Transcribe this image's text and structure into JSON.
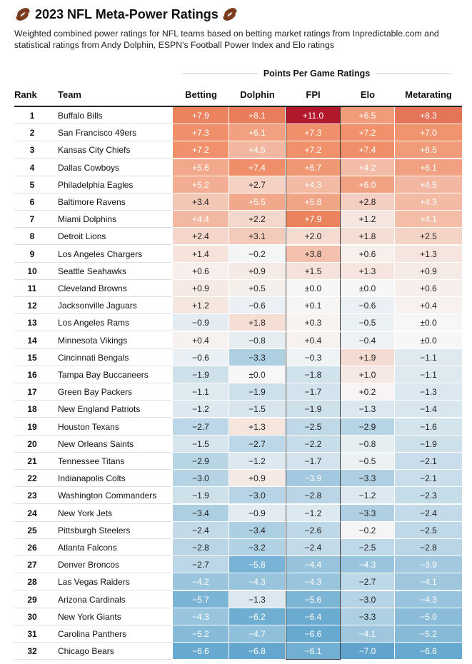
{
  "title": "2023 NFL Meta-Power Ratings",
  "subtitle": "Weighted combined power ratings for NFL teams based on betting market ratings from Inpredictable.com and statistical ratings from Andy Dolphin, ESPN's Football Power Index and Elo ratings",
  "icons": {
    "left": "football-icon",
    "right": "football-icon"
  },
  "group_header": "Points Per Game Ratings",
  "columns": {
    "rank": "Rank",
    "team": "Team",
    "betting": "Betting",
    "dolphin": "Dolphin",
    "fpi": "FPI",
    "elo": "Elo",
    "metarating": "Metarating"
  },
  "colors": {
    "strong_positive": "#b2182b",
    "positive": "#ef8a62",
    "neutral": "#f7f7f7",
    "negative": "#67a9cf",
    "strong_negative": "#2166ac"
  },
  "chart_data": {
    "type": "table",
    "value_columns": [
      "Betting",
      "Dolphin",
      "FPI",
      "Elo",
      "Metarating"
    ],
    "rows": [
      {
        "rank": "1",
        "team": "Buffalo Bills",
        "values": [
          "+7.9",
          "+8.1",
          "+11.0",
          "+6.5",
          "+8.3"
        ]
      },
      {
        "rank": "2",
        "team": "San Francisco 49ers",
        "values": [
          "+7.3",
          "+6.1",
          "+7.3",
          "+7.2",
          "+7.0"
        ]
      },
      {
        "rank": "3",
        "team": "Kansas City Chiefs",
        "values": [
          "+7.2",
          "+4.5",
          "+7.2",
          "+7.4",
          "+6.5"
        ]
      },
      {
        "rank": "4",
        "team": "Dallas Cowboys",
        "values": [
          "+5.6",
          "+7.4",
          "+6.7",
          "+4.2",
          "+6.1"
        ]
      },
      {
        "rank": "5",
        "team": "Philadelphia Eagles",
        "values": [
          "+5.2",
          "+2.7",
          "+4.3",
          "+6.0",
          "+4.5"
        ]
      },
      {
        "rank": "6",
        "team": "Baltimore Ravens",
        "values": [
          "+3.4",
          "+5.5",
          "+5.8",
          "+2.8",
          "+4.3"
        ]
      },
      {
        "rank": "7",
        "team": "Miami Dolphins",
        "values": [
          "+4.4",
          "+2.2",
          "+7.9",
          "+1.2",
          "+4.1"
        ]
      },
      {
        "rank": "8",
        "team": "Detroit Lions",
        "values": [
          "+2.4",
          "+3.1",
          "+2.0",
          "+1.8",
          "+2.5"
        ]
      },
      {
        "rank": "9",
        "team": "Los Angeles Chargers",
        "values": [
          "+1.4",
          "−0.2",
          "+3.8",
          "+0.6",
          "+1.3"
        ]
      },
      {
        "rank": "10",
        "team": "Seattle Seahawks",
        "values": [
          "+0.6",
          "+0.9",
          "+1.5",
          "+1.3",
          "+0.9"
        ]
      },
      {
        "rank": "11",
        "team": "Cleveland Browns",
        "values": [
          "+0.9",
          "+0.5",
          "±0.0",
          "±0.0",
          "+0.6"
        ]
      },
      {
        "rank": "12",
        "team": "Jacksonville Jaguars",
        "values": [
          "+1.2",
          "−0.6",
          "+0.1",
          "−0.6",
          "+0.4"
        ]
      },
      {
        "rank": "13",
        "team": "Los Angeles Rams",
        "values": [
          "−0.9",
          "+1.8",
          "+0.3",
          "−0.5",
          "±0.0"
        ]
      },
      {
        "rank": "14",
        "team": "Minnesota Vikings",
        "values": [
          "+0.4",
          "−0.8",
          "+0.4",
          "−0.4",
          "±0.0"
        ]
      },
      {
        "rank": "15",
        "team": "Cincinnati Bengals",
        "values": [
          "−0.6",
          "−3.3",
          "−0.3",
          "+1.9",
          "−1.1"
        ]
      },
      {
        "rank": "16",
        "team": "Tampa Bay Buccaneers",
        "values": [
          "−1.9",
          "±0.0",
          "−1.8",
          "+1.0",
          "−1.1"
        ]
      },
      {
        "rank": "17",
        "team": "Green Bay Packers",
        "values": [
          "−1.1",
          "−1.9",
          "−1.7",
          "+0.2",
          "−1.3"
        ]
      },
      {
        "rank": "18",
        "team": "New England Patriots",
        "values": [
          "−1.2",
          "−1.5",
          "−1.9",
          "−1.3",
          "−1.4"
        ]
      },
      {
        "rank": "19",
        "team": "Houston Texans",
        "values": [
          "−2.7",
          "+1.3",
          "−2.5",
          "−2.9",
          "−1.6"
        ]
      },
      {
        "rank": "20",
        "team": "New Orleans Saints",
        "values": [
          "−1.5",
          "−2.7",
          "−2.2",
          "−0.8",
          "−1.9"
        ]
      },
      {
        "rank": "21",
        "team": "Tennessee Titans",
        "values": [
          "−2.9",
          "−1.2",
          "−1.7",
          "−0.5",
          "−2.1"
        ]
      },
      {
        "rank": "22",
        "team": "Indianapolis Colts",
        "values": [
          "−3.0",
          "+0.9",
          "−3.9",
          "−3.3",
          "−2.1"
        ]
      },
      {
        "rank": "23",
        "team": "Washington Commanders",
        "values": [
          "−1.9",
          "−3.0",
          "−2.8",
          "−1.2",
          "−2.3"
        ]
      },
      {
        "rank": "24",
        "team": "New York Jets",
        "values": [
          "−3.4",
          "−0.9",
          "−1.2",
          "−3.3",
          "−2.4"
        ]
      },
      {
        "rank": "25",
        "team": "Pittsburgh Steelers",
        "values": [
          "−2.4",
          "−3.4",
          "−2.6",
          "−0.2",
          "−2.5"
        ]
      },
      {
        "rank": "26",
        "team": "Atlanta Falcons",
        "values": [
          "−2.8",
          "−3.2",
          "−2.4",
          "−2.5",
          "−2.8"
        ]
      },
      {
        "rank": "27",
        "team": "Denver Broncos",
        "values": [
          "−2.7",
          "−5.8",
          "−4.4",
          "−4.3",
          "−3.9"
        ]
      },
      {
        "rank": "28",
        "team": "Las Vegas Raiders",
        "values": [
          "−4.2",
          "−4.3",
          "−4.3",
          "−2.7",
          "−4.1"
        ]
      },
      {
        "rank": "29",
        "team": "Arizona Cardinals",
        "values": [
          "−5.7",
          "−1.3",
          "−5.6",
          "−3.0",
          "−4.3"
        ]
      },
      {
        "rank": "30",
        "team": "New York Giants",
        "values": [
          "−4.3",
          "−6.2",
          "−6.4",
          "−3.3",
          "−5.0"
        ]
      },
      {
        "rank": "31",
        "team": "Carolina Panthers",
        "values": [
          "−5.2",
          "−4.7",
          "−6.6",
          "−4.1",
          "−5.2"
        ]
      },
      {
        "rank": "32",
        "team": "Chicago Bears",
        "values": [
          "−6.6",
          "−6.8",
          "−6.1",
          "−7.0",
          "−6.6"
        ]
      }
    ]
  }
}
